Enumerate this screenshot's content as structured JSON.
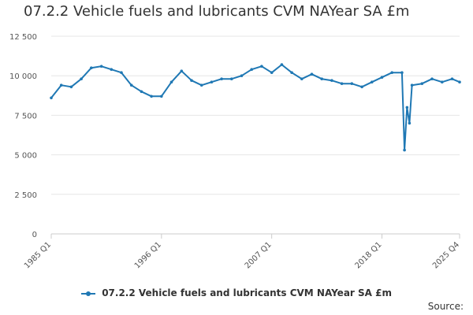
{
  "chart_data": {
    "type": "line",
    "title": "07.2.2 Vehicle fuels and lubricants CVM NAYear SA £m",
    "xlabel": "",
    "ylabel": "",
    "ylim": [
      0,
      12500
    ],
    "yticks": [
      0,
      2500,
      5000,
      7500,
      10000,
      12500
    ],
    "ytick_labels": [
      "0",
      "2 500",
      "5 000",
      "7 500",
      "10 000",
      "12 500"
    ],
    "xticks": [
      "1985 Q1",
      "1996 Q1",
      "2007 Q1",
      "2018 Q1",
      "2025 Q4"
    ],
    "grid": "horizontal",
    "legend_position": "bottom",
    "series": [
      {
        "name": "07.2.2 Vehicle fuels and lubricants CVM NAYear SA £m",
        "color": "#1f78b4",
        "x": [
          "1985 Q1",
          "1986 Q1",
          "1987 Q1",
          "1988 Q1",
          "1989 Q1",
          "1990 Q1",
          "1991 Q1",
          "1992 Q1",
          "1993 Q1",
          "1994 Q1",
          "1995 Q1",
          "1996 Q1",
          "1997 Q1",
          "1998 Q1",
          "1999 Q1",
          "2000 Q1",
          "2001 Q1",
          "2002 Q1",
          "2003 Q1",
          "2004 Q1",
          "2005 Q1",
          "2006 Q1",
          "2007 Q1",
          "2008 Q1",
          "2009 Q1",
          "2010 Q1",
          "2011 Q1",
          "2012 Q1",
          "2013 Q1",
          "2014 Q1",
          "2015 Q1",
          "2016 Q1",
          "2017 Q1",
          "2018 Q1",
          "2019 Q1",
          "2020 Q1",
          "2020 Q2",
          "2020 Q3",
          "2020 Q4",
          "2021 Q1",
          "2022 Q1",
          "2023 Q1",
          "2024 Q1",
          "2025 Q1",
          "2025 Q4"
        ],
        "values": [
          8600,
          9400,
          9300,
          9800,
          10500,
          10600,
          10400,
          10200,
          9400,
          9000,
          8700,
          8700,
          9600,
          10300,
          9700,
          9400,
          9600,
          9800,
          9800,
          10000,
          10400,
          10600,
          10200,
          10700,
          10200,
          9800,
          10100,
          9800,
          9700,
          9500,
          9500,
          9300,
          9600,
          9900,
          10200,
          10200,
          5300,
          8000,
          7000,
          9400,
          9500,
          9800,
          9600,
          9800,
          9600
        ]
      }
    ]
  },
  "legend": {
    "label": "07.2.2 Vehicle fuels and lubricants CVM NAYear SA £m"
  },
  "source_label": "Source:"
}
